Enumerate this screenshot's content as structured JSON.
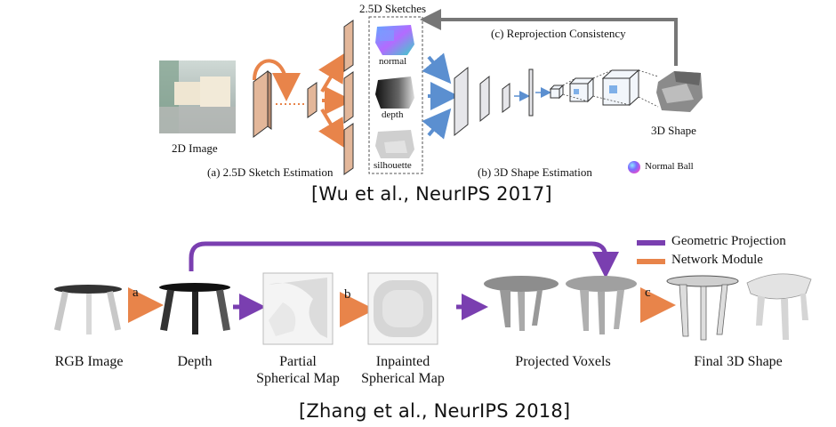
{
  "top": {
    "sketches_title": "2.5D Sketches",
    "reprojection_label": "(c) Reprojection Consistency",
    "input_label": "2D Image",
    "sketch_normal": "normal",
    "sketch_depth": "depth",
    "sketch_silhouette": "silhouette",
    "stage_a_label": "(a) 2.5D Sketch Estimation",
    "stage_b_label": "(b) 3D Shape Estimation",
    "output_label": "3D Shape",
    "normal_ball_label": "Normal Ball",
    "citation": "[Wu et al., NeurIPS 2017]"
  },
  "bottom": {
    "legend": [
      {
        "label": "Geometric Projection",
        "color": "#7a3fb0"
      },
      {
        "label": "Network Module",
        "color": "#e8844a"
      }
    ],
    "step_a": "a",
    "step_b": "b",
    "step_c": "c",
    "labels": {
      "rgb": "RGB Image",
      "depth": "Depth",
      "partial_1": "Partial",
      "partial_2": "Spherical Map",
      "inpainted_1": "Inpainted",
      "inpainted_2": "Spherical Map",
      "voxels": "Projected Voxels",
      "final": "Final 3D Shape"
    },
    "citation": "[Zhang et al., NeurIPS 2018]"
  },
  "colors": {
    "orange": "#e8844a",
    "purple": "#7a3fb0",
    "blue": "#5b8fd0",
    "gray_arrow": "#777777",
    "feature_map": "#e3b79a"
  }
}
